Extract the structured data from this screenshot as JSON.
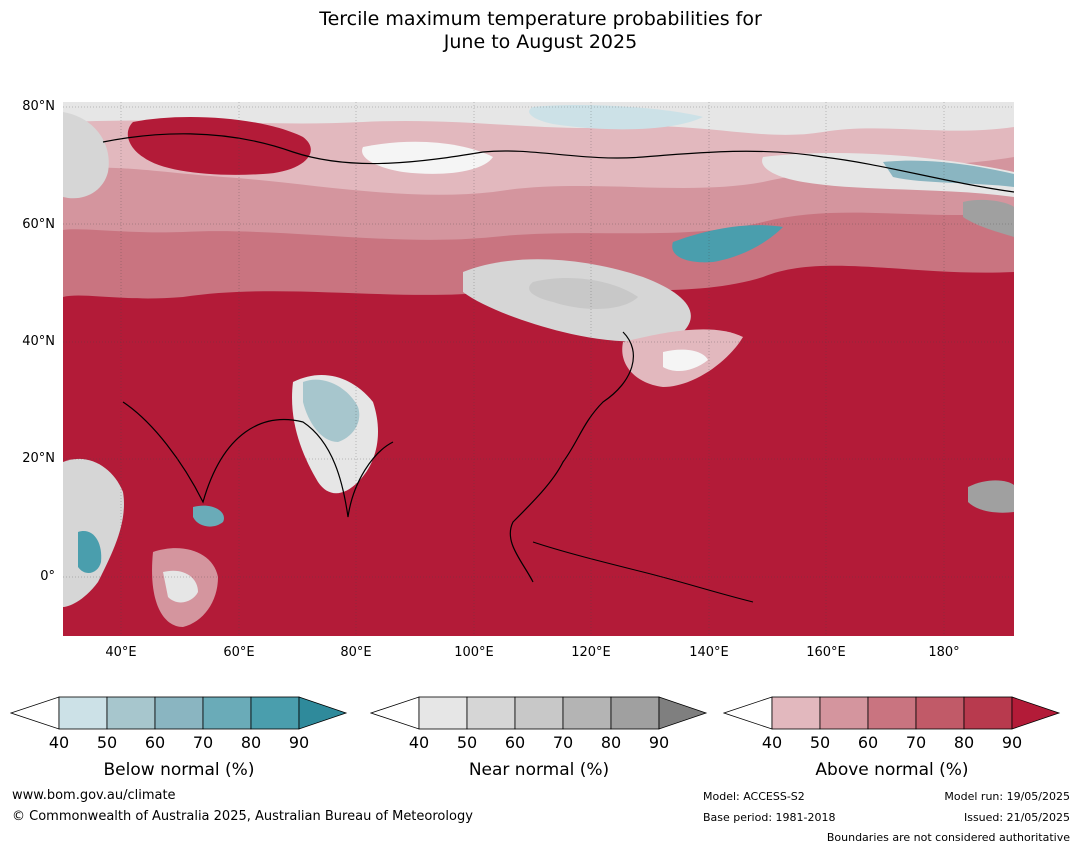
{
  "title": {
    "line1": "Tercile maximum temperature probabilities for",
    "line2": "June to August 2025"
  },
  "map": {
    "lat_ticks": [
      {
        "value": 80,
        "label": "80°N"
      },
      {
        "value": 60,
        "label": "60°N"
      },
      {
        "value": 40,
        "label": "40°N"
      },
      {
        "value": 20,
        "label": "20°N"
      },
      {
        "value": 0,
        "label": "0°"
      }
    ],
    "lon_ticks": [
      {
        "value": 40,
        "label": "40°E"
      },
      {
        "value": 60,
        "label": "60°E"
      },
      {
        "value": 80,
        "label": "80°E"
      },
      {
        "value": 100,
        "label": "100°E"
      },
      {
        "value": 120,
        "label": "120°E"
      },
      {
        "value": 140,
        "label": "140°E"
      },
      {
        "value": 160,
        "label": "160°E"
      },
      {
        "value": 180,
        "label": "180°"
      }
    ],
    "lon_range": [
      30,
      192
    ],
    "lat_range": [
      -10,
      81
    ],
    "colors": {
      "above_dominant": "#b31b38",
      "near_region": "#d6d6d6",
      "below_region": "#a8c6cd"
    }
  },
  "colorbars": [
    {
      "id": "below",
      "title": "Below normal (%)",
      "ticks": [
        "40",
        "50",
        "60",
        "70",
        "80",
        "90"
      ],
      "colors": [
        "#cce1e7",
        "#a7c6cd",
        "#8ab5c1",
        "#6aabb8",
        "#4a9ead",
        "#2f8a9b"
      ]
    },
    {
      "id": "near",
      "title": "Near normal (%)",
      "ticks": [
        "40",
        "50",
        "60",
        "70",
        "80",
        "90"
      ],
      "colors": [
        "#e6e6e6",
        "#d6d6d6",
        "#c8c8c8",
        "#b4b4b4",
        "#a0a0a0",
        "#7f7f7f"
      ]
    },
    {
      "id": "above",
      "title": "Above normal (%)",
      "ticks": [
        "40",
        "50",
        "60",
        "70",
        "80",
        "90"
      ],
      "colors": [
        "#e2b8be",
        "#d4959e",
        "#c97480",
        "#c15a68",
        "#b83a4e",
        "#b31b38"
      ]
    }
  ],
  "footer": {
    "website": "www.bom.gov.au/climate",
    "copyright": "© Commonwealth of Australia 2025, Australian Bureau of Meteorology",
    "model": "Model: ACCESS-S2",
    "base_period": "Base period: 1981-2018",
    "model_run": "Model run: 19/05/2025",
    "issued": "Issued: 21/05/2025",
    "disclaimer": "Boundaries are not considered authoritative"
  }
}
